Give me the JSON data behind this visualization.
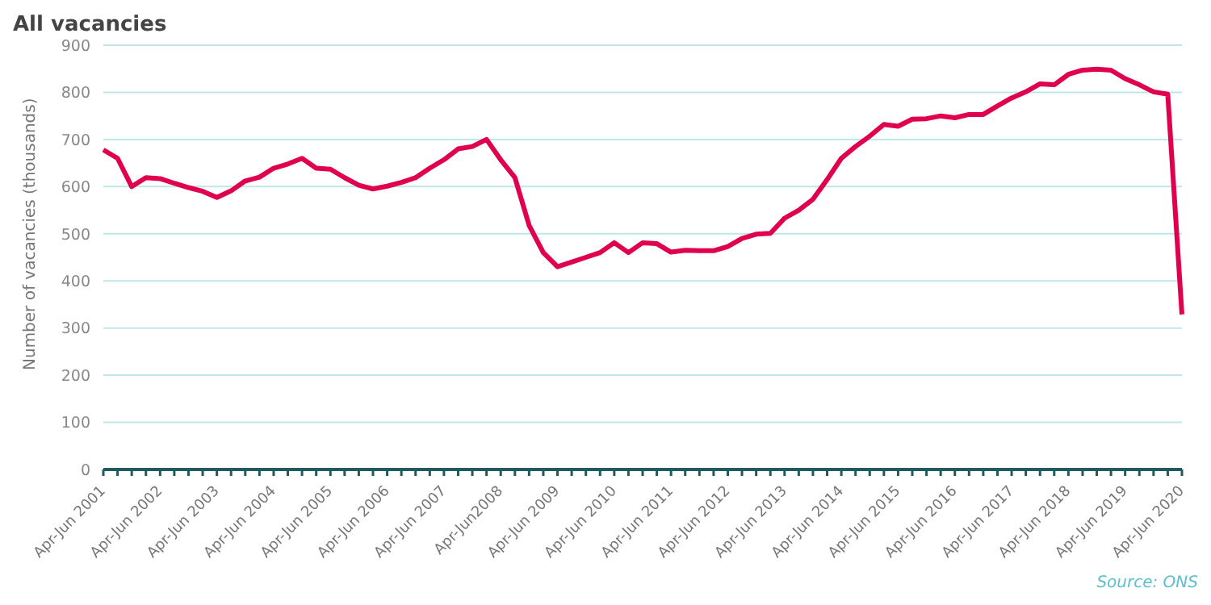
{
  "chart_data": {
    "type": "line",
    "title": "All vacancies",
    "ylabel": "Number of vacancies (thousands)",
    "categories": [
      "Apr-Jun 2001",
      null,
      null,
      null,
      "Apr-Jun 2002",
      null,
      null,
      null,
      "Apr-Jun 2003",
      null,
      null,
      null,
      "Apr-Jun 2004",
      null,
      null,
      null,
      "Apr-Jun 2005",
      null,
      null,
      null,
      "Apr-Jun 2006",
      null,
      null,
      null,
      "Apr-Jun 2007",
      null,
      null,
      null,
      "Apr-Jun2008",
      null,
      null,
      null,
      "Apr-Jun 2009",
      null,
      null,
      null,
      "Apr-Jun 2010",
      null,
      null,
      null,
      "Apr-Jun 2011",
      null,
      null,
      null,
      "Apr-Jun 2012",
      null,
      null,
      null,
      "Apr-Jun 2013",
      null,
      null,
      null,
      "Apr-Jun 2014",
      null,
      null,
      null,
      "Apr-Jun 2015",
      null,
      null,
      null,
      "Apr-Jun 2016",
      null,
      null,
      null,
      "Apr-Jun 2017",
      null,
      null,
      null,
      "Apr-Jun 2018",
      null,
      null,
      null,
      "Apr-Jun 2019",
      null,
      null,
      null,
      "Apr-Jun 2020"
    ],
    "series": [
      {
        "color": "#e0004d",
        "values": [
          678,
          660,
          600,
          619,
          617,
          607,
          598,
          590,
          577,
          591,
          612,
          620,
          639,
          648,
          660,
          639,
          637,
          619,
          603,
          595,
          601,
          609,
          619,
          639,
          657,
          680,
          685,
          700,
          657,
          619,
          518,
          460,
          430,
          440,
          450,
          460,
          481,
          460,
          481,
          479,
          461,
          465,
          464,
          464,
          473,
          490,
          499,
          501,
          533,
          550,
          573,
          615,
          660,
          685,
          707,
          732,
          728,
          743,
          744,
          750,
          746,
          753,
          753,
          771,
          788,
          801,
          818,
          816,
          838,
          847,
          849,
          847,
          829,
          816,
          801,
          796,
          329
        ]
      }
    ],
    "ylim": [
      0,
      900
    ],
    "yticks": [
      0,
      100,
      200,
      300,
      400,
      500,
      600,
      700,
      800,
      900
    ],
    "grid": "y",
    "marker": "none",
    "line_style": "solid",
    "legend": false,
    "annotations": [
      "Source: ONS"
    ]
  }
}
